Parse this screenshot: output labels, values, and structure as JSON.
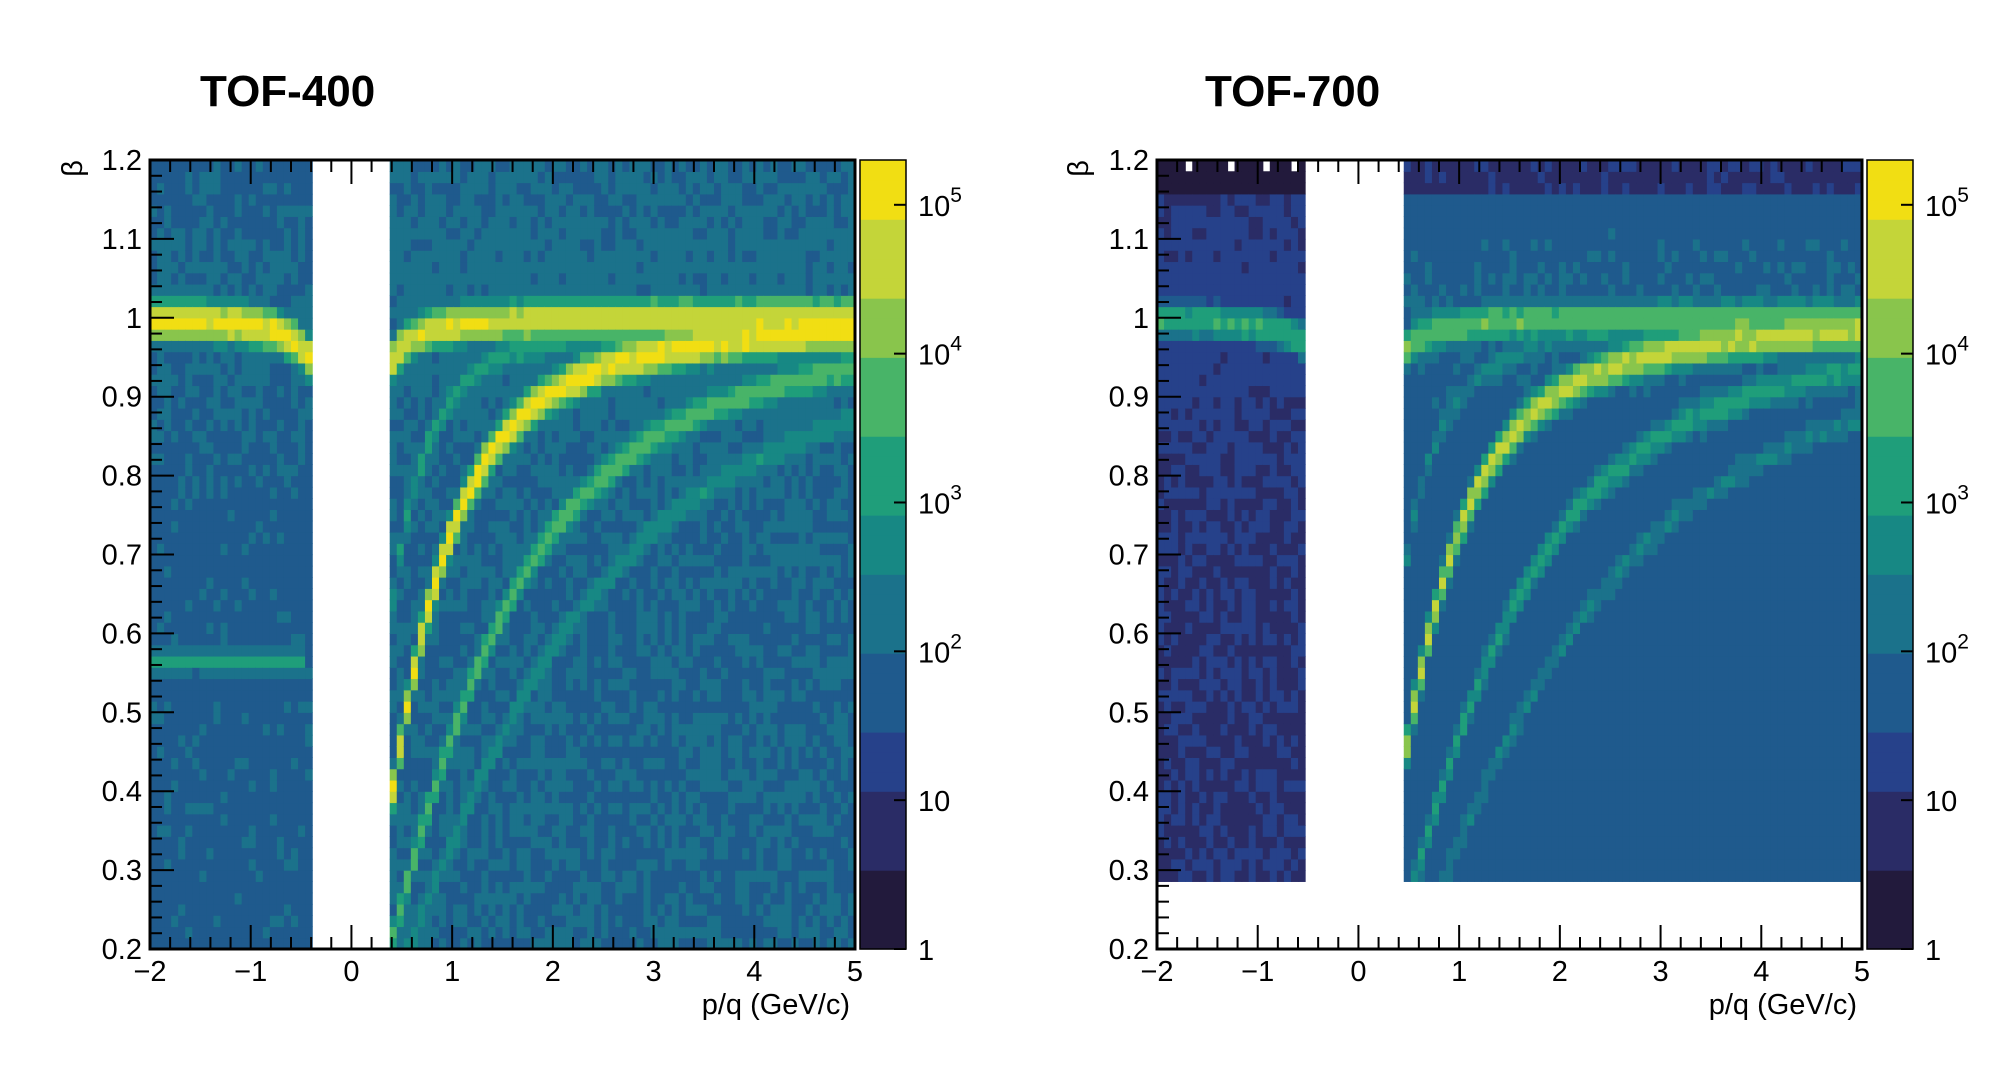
{
  "chart_data": [
    {
      "type": "heatmap",
      "title": "TOF-400",
      "xlabel": "p/q (GeV/c)",
      "ylabel": "β",
      "xlim": [
        -2,
        5
      ],
      "ylim": [
        0.2,
        1.2
      ],
      "x_tick_labels": [
        "−2",
        "−1",
        "0",
        "1",
        "2",
        "3",
        "4",
        "5"
      ],
      "y_tick_labels": [
        "0.2",
        "0.3",
        "0.4",
        "0.5",
        "0.6",
        "0.7",
        "0.8",
        "0.9",
        "1",
        "1.1",
        "1.2"
      ],
      "z_scale": "log",
      "zlim": [
        1,
        200000
      ],
      "colorbar_labels": [
        "1",
        "10",
        "10",
        "10",
        "10",
        "10"
      ],
      "colorbar_exponents": [
        "",
        "",
        "2",
        "3",
        "4",
        "5"
      ],
      "empty_band_x": [
        -0.4,
        0.4
      ],
      "band_masses": [
        0.1396,
        0.4937,
        0.9383,
        1.8756,
        2.8094
      ],
      "band_peak_counts": [
        80000,
        1500,
        120000,
        6000,
        700
      ],
      "negative_band_masses": [
        0.1396
      ],
      "negative_band_peak_counts": [
        120000
      ],
      "line_feature": {
        "beta": 0.565,
        "x_range": [
          -2,
          -0.45
        ],
        "counts": 1500
      }
    },
    {
      "type": "heatmap",
      "title": "TOF-700",
      "xlabel": "p/q (GeV/c)",
      "ylabel": "β",
      "xlim": [
        -2,
        5
      ],
      "ylim": [
        0.2,
        1.2
      ],
      "x_tick_labels": [
        "−2",
        "−1",
        "0",
        "1",
        "2",
        "3",
        "4",
        "5"
      ],
      "y_tick_labels": [
        "0.2",
        "0.3",
        "0.4",
        "0.5",
        "0.6",
        "0.7",
        "0.8",
        "0.9",
        "1",
        "1.1",
        "1.2"
      ],
      "z_scale": "log",
      "zlim": [
        1,
        200000
      ],
      "colorbar_labels": [
        "1",
        "10",
        "10",
        "10",
        "10",
        "10"
      ],
      "colorbar_exponents": [
        "",
        "",
        "2",
        "3",
        "4",
        "5"
      ],
      "empty_band_x": [
        -0.5,
        0.48
      ],
      "beta_min": 0.29,
      "band_masses": [
        0.1396,
        0.4937,
        0.9383,
        1.8756,
        2.8094
      ],
      "band_peak_counts": [
        8000,
        300,
        40000,
        1500,
        300
      ],
      "negative_band_masses": [
        0.1396
      ],
      "negative_band_peak_counts": [
        3000
      ]
    }
  ],
  "colors": {
    "palette_viridis": [
      "#221a3c",
      "#2a2c66",
      "#26418a",
      "#1f5a8d",
      "#1b728b",
      "#178884",
      "#1f9e7a",
      "#48b468",
      "#89c54c",
      "#c4d539",
      "#f1de13"
    ]
  }
}
